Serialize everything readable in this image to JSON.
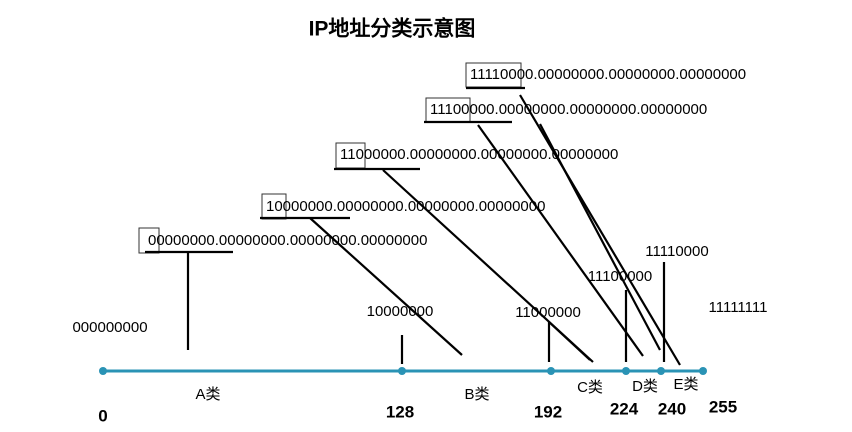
{
  "title": "IP地址分类示意图",
  "addresses": [
    {
      "prefix": "1111",
      "rest": "0000.00000000.00000000.00000000"
    },
    {
      "prefix": "111",
      "rest": "00000.00000000.00000000.00000000"
    },
    {
      "prefix": "11",
      "rest": "000000.00000000.00000000.00000000"
    },
    {
      "prefix": "1",
      "rest": "0000000.00000000.00000000.00000000"
    },
    {
      "prefix": "0",
      "rest": "0000000.00000000.00000000.00000000"
    }
  ],
  "boundaries": [
    "0",
    "128",
    "192",
    "224",
    "240",
    "255"
  ],
  "classes": [
    "A类",
    "B类",
    "C类",
    "D类",
    "E类"
  ],
  "binary_labels": [
    "000000000",
    "10000000",
    "11000000",
    "11100000",
    "11110000",
    "11111111"
  ]
}
